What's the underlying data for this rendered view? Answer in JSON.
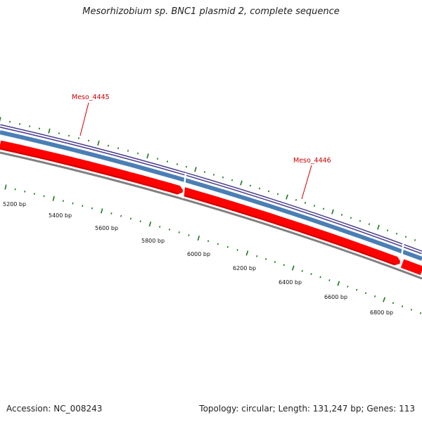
{
  "title": "Mesorhizobium sp. BNC1 plasmid 2, complete sequence",
  "footer": {
    "accession": "Accession: NC_008243",
    "stats": "Topology: circular; Length: 131,247 bp; Genes: 113"
  },
  "tick_labels": [
    "5200 bp",
    "5400 bp",
    "5600 bp",
    "5800 bp",
    "6000 bp",
    "6200 bp",
    "6400 bp",
    "6600 bp",
    "6800 bp"
  ],
  "genes": [
    {
      "label": "Meso_4445",
      "strand": "+",
      "color": "#ff0000"
    },
    {
      "label": "Meso_4446",
      "strand": "+",
      "color": "#ff0000"
    }
  ],
  "colors": {
    "outer_ring": "#4b3f8f",
    "second_ring": "#4a7fb5",
    "gene_ring": "#ff0000",
    "backbone": "#808080",
    "tick": "#1a7a1a",
    "label": "#cc0000"
  }
}
